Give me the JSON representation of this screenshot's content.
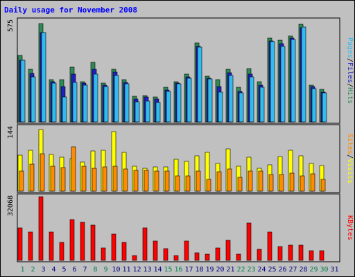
{
  "chart_data": {
    "type": "bar",
    "title": "Daily usage for November 2008",
    "days": [
      "1",
      "2",
      "3",
      "4",
      "5",
      "6",
      "7",
      "8",
      "9",
      "10",
      "11",
      "12",
      "13",
      "14",
      "15",
      "16",
      "17",
      "18",
      "19",
      "20",
      "21",
      "22",
      "23",
      "24",
      "25",
      "26",
      "27",
      "28",
      "29",
      "30",
      "31"
    ],
    "weekend_days": [
      "1",
      "2",
      "8",
      "9",
      "15",
      "16",
      "22",
      "23",
      "29",
      "30"
    ],
    "panels": [
      {
        "id": "pages-files-hits",
        "max_label": "575",
        "ymax": 575,
        "legend": [
          "Pages",
          "/",
          "Files",
          "/",
          "Hits"
        ],
        "series": [
          {
            "name": "Hits",
            "color": "#2e8b57",
            "values": [
              380,
              300,
              560,
              240,
              240,
              310,
              230,
              340,
              220,
              300,
              240,
              145,
              150,
              140,
              195,
              230,
              270,
              450,
              260,
              240,
              300,
              195,
              305,
              230,
              475,
              465,
              490,
              555,
              210,
              185,
              0
            ]
          },
          {
            "name": "Files",
            "color": "#2020c0",
            "values": [
              350,
              275,
              510,
              230,
              200,
              270,
              220,
              300,
              210,
              285,
              225,
              130,
              140,
              130,
              180,
              220,
              255,
              430,
              250,
              200,
              280,
              175,
              270,
              210,
              460,
              445,
              475,
              535,
              200,
              170,
              0
            ]
          },
          {
            "name": "Pages",
            "color": "#33bbee",
            "values": [
              350,
              255,
              510,
              220,
              140,
              225,
              210,
              270,
              200,
              265,
              215,
              115,
              120,
              110,
              175,
              215,
              250,
              425,
              245,
              170,
              265,
              165,
              255,
              195,
              455,
              430,
              470,
              540,
              190,
              165,
              0
            ]
          }
        ]
      },
      {
        "id": "visits-sites",
        "max_label": "144",
        "ymax": 144,
        "legend": [
          "Sites",
          "/",
          "Visits"
        ],
        "series": [
          {
            "name": "Visits",
            "color": "#ffff00",
            "values": [
              81,
              92,
              140,
              83,
              76,
              74,
              65,
              90,
              93,
              134,
              87,
              56,
              52,
              54,
              54,
              72,
              68,
              80,
              88,
              63,
              96,
              57,
              76,
              52,
              60,
              78,
              92,
              80,
              62,
              58,
              0
            ]
          },
          {
            "name": "Sites",
            "color": "#ff8c00",
            "values": [
              46,
              61,
              85,
              56,
              53,
              100,
              56,
              52,
              55,
              56,
              50,
              47,
              47,
              45,
              46,
              34,
              34,
              46,
              26,
              44,
              50,
              32,
              45,
              45,
              37,
              37,
              40,
              34,
              39,
              27,
              0
            ]
          }
        ]
      },
      {
        "id": "kbytes",
        "max_label": "32068",
        "ymax": 32068,
        "legend": [
          "KBytes"
        ],
        "series": [
          {
            "name": "KBytes",
            "color": "#ff0000",
            "values": [
              16500,
              14200,
              32068,
              14200,
              9200,
              20500,
              19200,
              17800,
              6200,
              13400,
              9200,
              2500,
              16300,
              9800,
              5800,
              2300,
              9700,
              3800,
              3100,
              6400,
              10100,
              3100,
              18700,
              5500,
              14400,
              6900,
              7500,
              7500,
              5000,
              5000,
              0
            ]
          }
        ]
      }
    ],
    "colors": {
      "background": "#c0c0c0",
      "title": "#0000ff",
      "axis_label": "#000000",
      "weekday": "#000080",
      "weekend": "#00804d"
    }
  }
}
